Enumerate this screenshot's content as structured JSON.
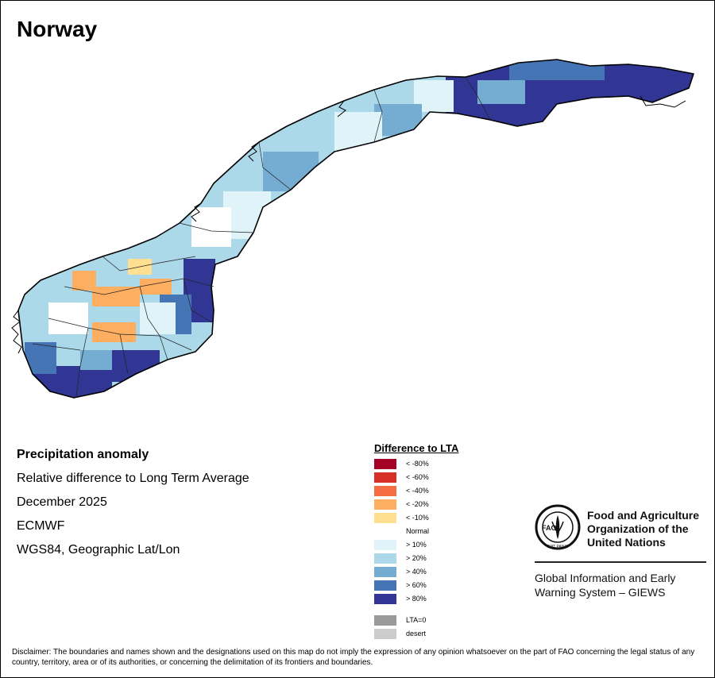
{
  "title": "Norway",
  "info": {
    "heading": "Precipitation anomaly",
    "line1": "Relative difference to Long Term Average",
    "line2": "December 2025",
    "line3": "ECMWF",
    "line4": "WGS84, Geographic Lat/Lon"
  },
  "legend": {
    "title": "Difference to LTA",
    "items": [
      {
        "label": "< -80%",
        "color": "#a50026"
      },
      {
        "label": "< -60%",
        "color": "#d73027"
      },
      {
        "label": "< -40%",
        "color": "#f46d43"
      },
      {
        "label": "< -20%",
        "color": "#fdae61"
      },
      {
        "label": "< -10%",
        "color": "#fee090"
      },
      {
        "label": "Normal",
        "color": "#ffffff"
      },
      {
        "label": "> 10%",
        "color": "#e0f3f8"
      },
      {
        "label": "> 20%",
        "color": "#abd9e9"
      },
      {
        "label": "> 40%",
        "color": "#74add1"
      },
      {
        "label": "> 60%",
        "color": "#4575b4"
      },
      {
        "label": "> 80%",
        "color": "#313695"
      }
    ],
    "extra": [
      {
        "label": "LTA=0",
        "color": "#999999"
      },
      {
        "label": "desert",
        "color": "#cccccc"
      }
    ]
  },
  "fao": {
    "line1": "Food and Agriculture",
    "line2": "Organization of the",
    "line3": "United Nations",
    "logo_text": "FAO",
    "motto": "FIAT PANIS",
    "giews1": "Global Information and Early",
    "giews2": "Warning System – GIEWS"
  },
  "disclaimer": "Disclaimer: The boundaries and names shown and the designations used on this map do not imply the expression of any opinion whatsoever on the part of FAO concerning the legal status of any country, territory, area or of its authorities, or concerning the delimitation of its frontiers and boundaries."
}
